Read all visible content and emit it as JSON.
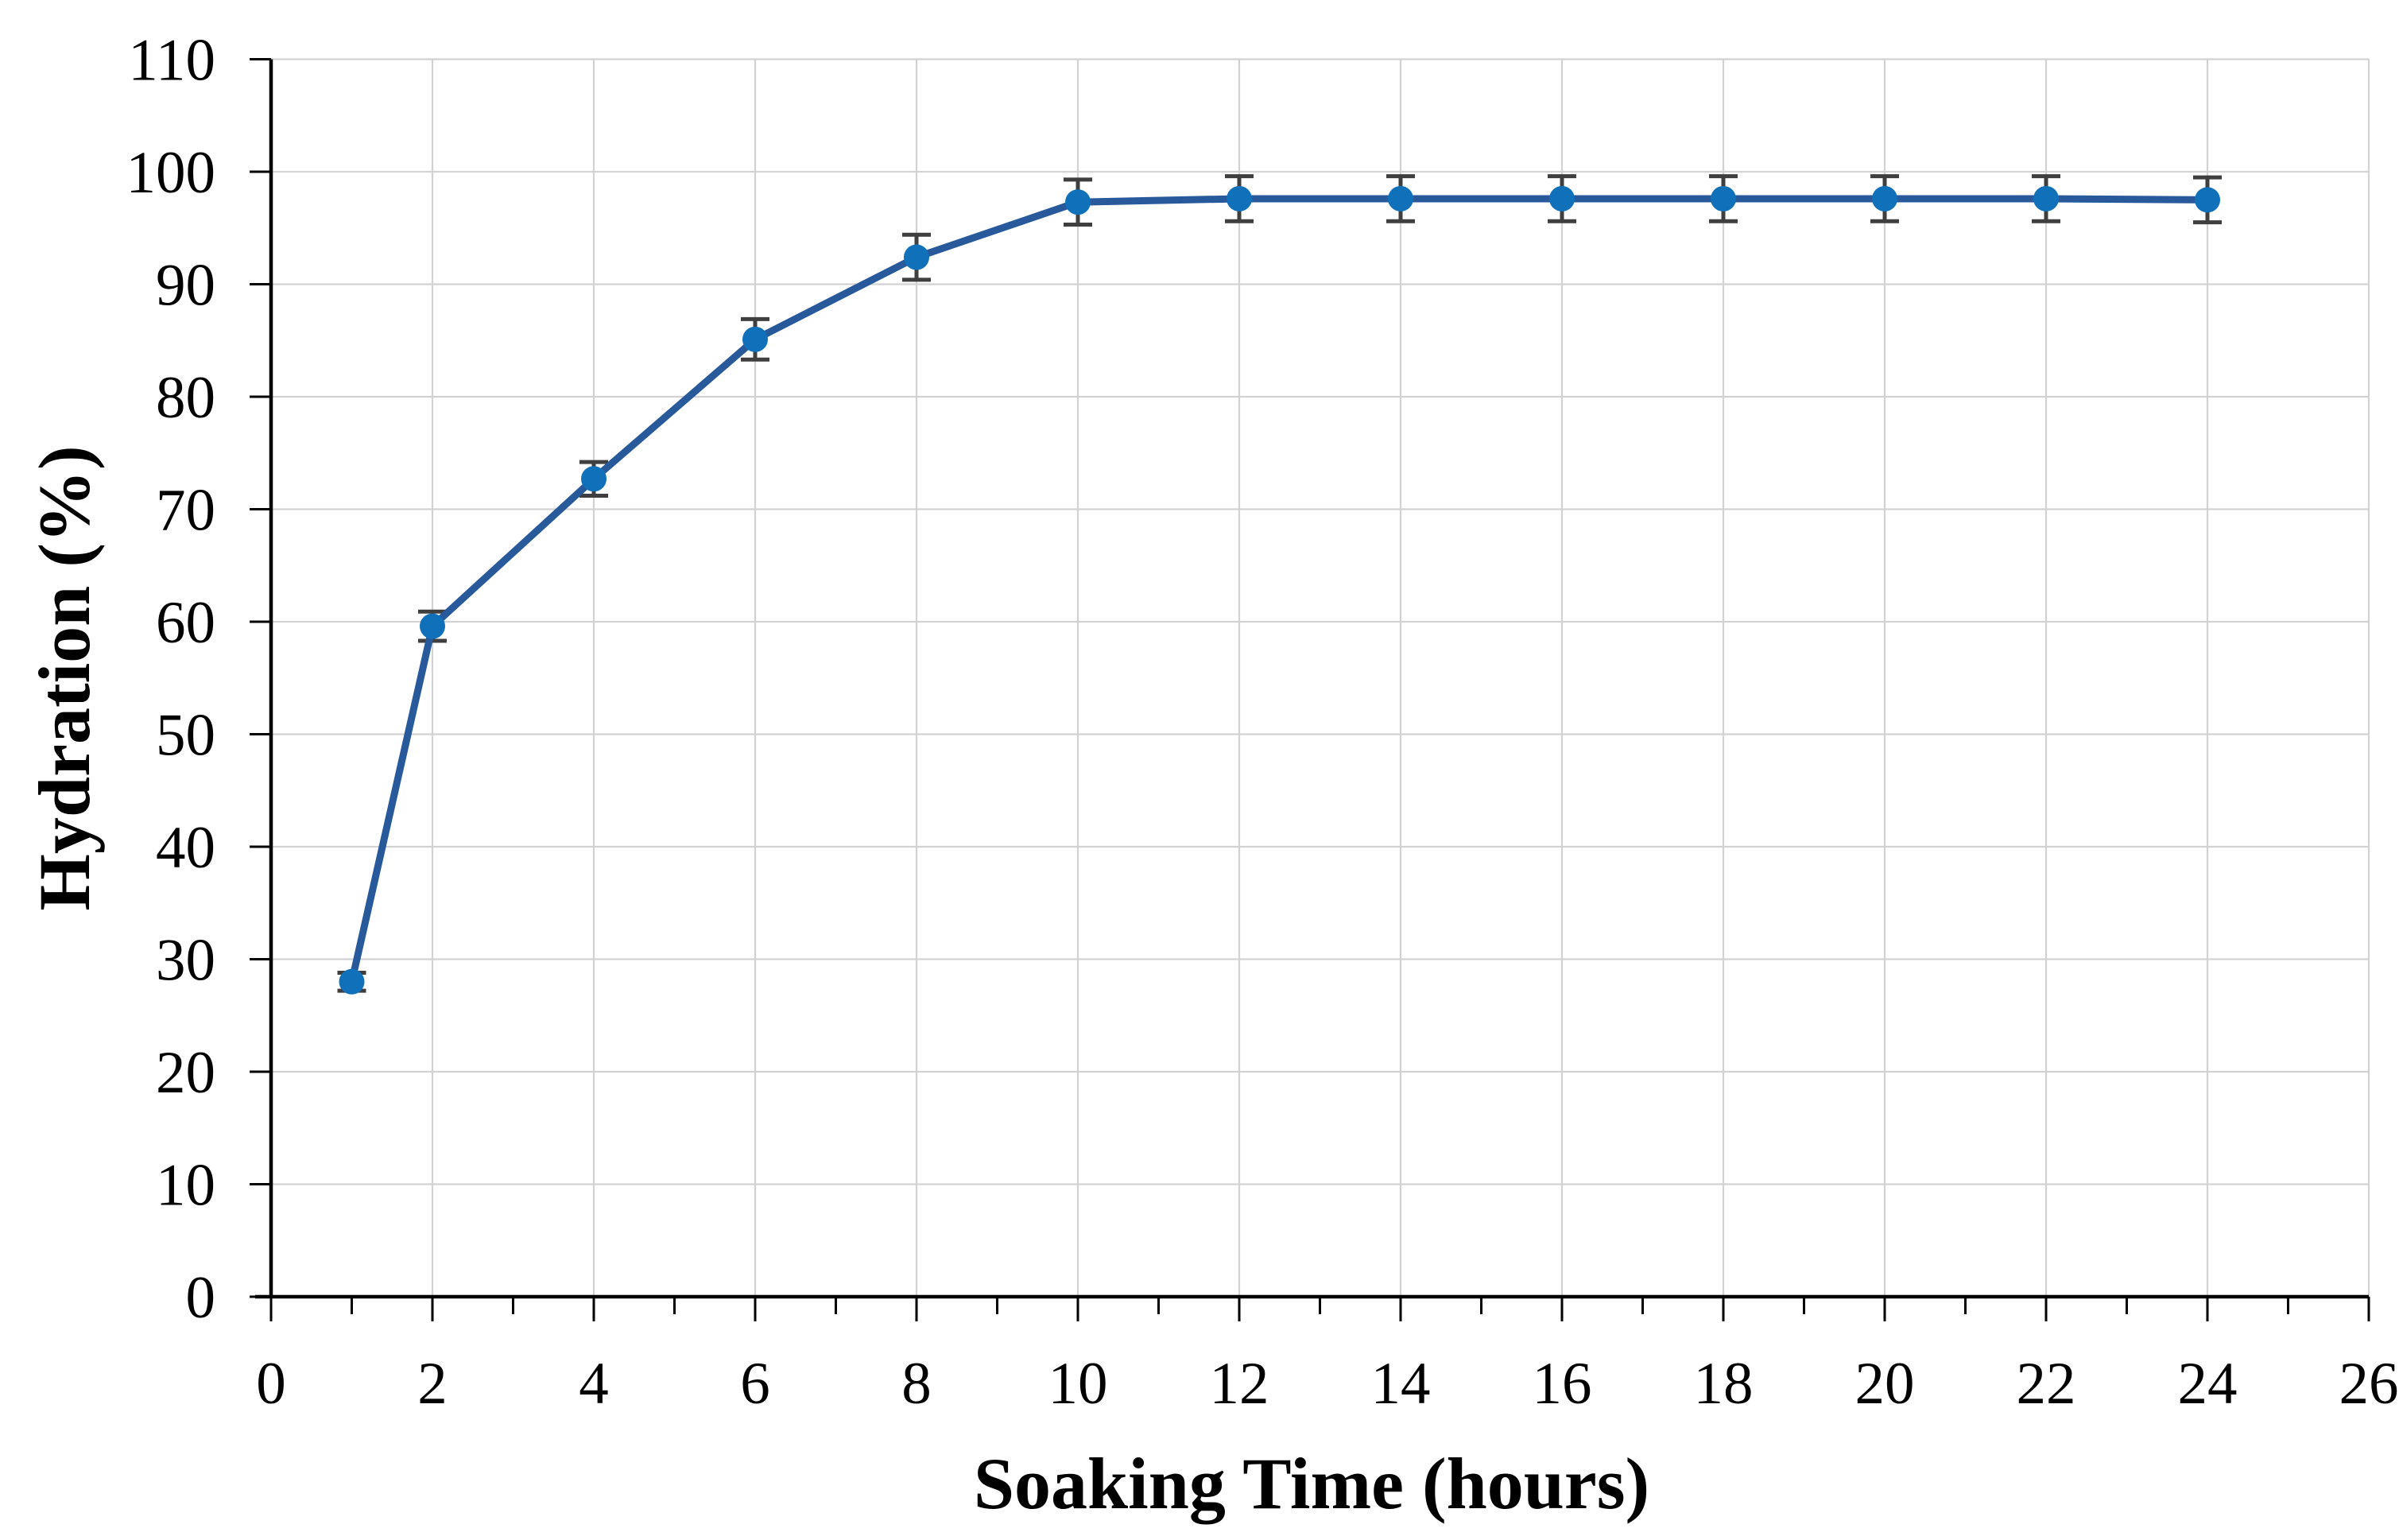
{
  "figure": {
    "background": "#ffffff"
  },
  "chart_data": {
    "type": "line",
    "title": "",
    "xlabel": "Soaking Time (hours)",
    "ylabel": "Hydration (%)",
    "series": [
      {
        "name": "hydration",
        "x": [
          1,
          2,
          4,
          6,
          8,
          10,
          12,
          14,
          16,
          18,
          20,
          22,
          24
        ],
        "y": [
          28.0,
          59.6,
          72.7,
          85.1,
          92.4,
          97.3,
          97.6,
          97.6,
          97.6,
          97.6,
          97.6,
          97.6,
          97.5
        ],
        "yerr": [
          0.8,
          1.3,
          1.5,
          1.8,
          2.0,
          2.0,
          2.0,
          2.0,
          2.0,
          2.0,
          2.0,
          2.0,
          2.0
        ]
      }
    ],
    "xlim": [
      0,
      26
    ],
    "ylim": [
      0,
      110
    ],
    "x_major_step": 2,
    "x_minor_step": 1,
    "y_major_step": 10,
    "x_tick_labels": [
      "0",
      "2",
      "4",
      "6",
      "8",
      "10",
      "12",
      "14",
      "16",
      "18",
      "20",
      "22",
      "24",
      "26"
    ],
    "y_tick_labels": [
      "0",
      "10",
      "20",
      "30",
      "40",
      "50",
      "60",
      "70",
      "80",
      "90",
      "100",
      "110"
    ],
    "grid": "major",
    "legend": "none",
    "marker": "circle",
    "colors": {
      "line": "#27599B",
      "marker": "#1170BA",
      "error_bar": "#3F3F3F",
      "grid": "#D2D2D2",
      "axis": "#000000",
      "text": "#000000"
    }
  }
}
